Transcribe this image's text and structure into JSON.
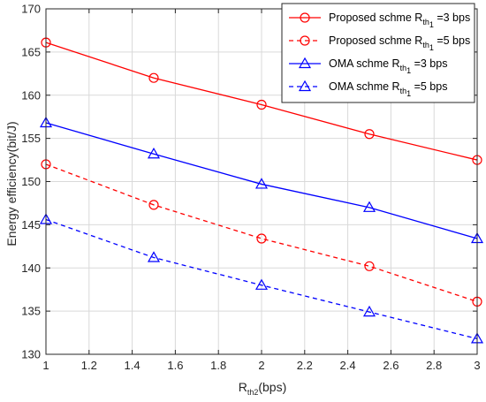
{
  "chart_data": {
    "type": "line",
    "xlabel_main": "R",
    "xlabel_sub": "th2",
    "xlabel_rest": "(bps)",
    "ylabel": "Energy efficiency(bit/J)",
    "xlim": [
      1,
      3
    ],
    "ylim": [
      130,
      170
    ],
    "x_ticks": [
      "1",
      "1.2",
      "1.4",
      "1.6",
      "1.8",
      "2",
      "2.2",
      "2.4",
      "2.6",
      "2.8",
      "3"
    ],
    "y_ticks": [
      "130",
      "135",
      "140",
      "145",
      "150",
      "155",
      "160",
      "165",
      "170"
    ],
    "grid": true,
    "legend_position": "top-right",
    "x": [
      1,
      1.5,
      2,
      2.5,
      3
    ],
    "series": [
      {
        "name_pre": "Proposed schme R",
        "name_sub": "th",
        "name_subsub": "1",
        "name_post": "=3 bps",
        "color": "#ff0000",
        "dash": "solid",
        "marker": "circle",
        "values": [
          166.1,
          162.0,
          158.9,
          155.5,
          152.5
        ]
      },
      {
        "name_pre": "Proposed schme R",
        "name_sub": "th",
        "name_subsub": "1",
        "name_post": "=5 bps",
        "color": "#ff0000",
        "dash": "dashed",
        "marker": "circle",
        "values": [
          152.0,
          147.3,
          143.4,
          140.2,
          136.1
        ]
      },
      {
        "name_pre": "OMA schme R",
        "name_sub": "th",
        "name_subsub": "1",
        "name_post": "=3 bps",
        "color": "#0000ff",
        "dash": "solid",
        "marker": "triangle",
        "values": [
          156.8,
          153.2,
          149.7,
          147.0,
          143.4
        ]
      },
      {
        "name_pre": "OMA schme R",
        "name_sub": "th",
        "name_subsub": "1",
        "name_post": "=5 bps",
        "color": "#0000ff",
        "dash": "dashed",
        "marker": "triangle",
        "values": [
          145.6,
          141.2,
          138.0,
          134.9,
          131.8
        ]
      }
    ]
  }
}
